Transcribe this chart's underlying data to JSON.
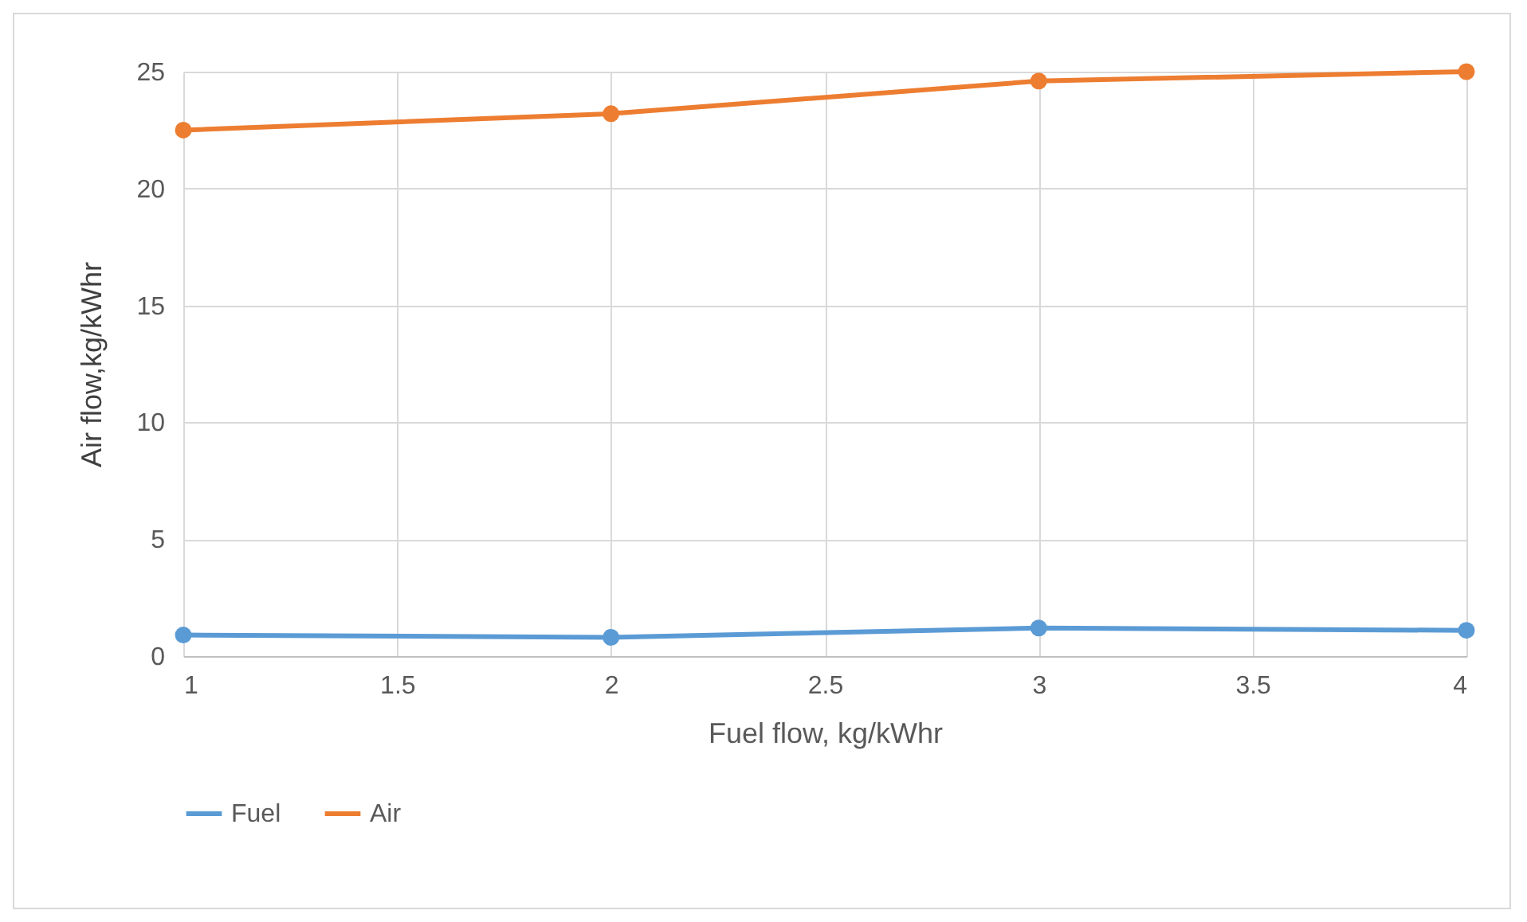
{
  "chart_data": {
    "type": "line",
    "xlabel": "Fuel flow, kg/kWhr",
    "ylabel": "Air flow,kg/kWhr",
    "x": [
      1,
      2,
      3,
      4
    ],
    "series": [
      {
        "name": "Fuel",
        "color": "#5b9bd5",
        "values": [
          0.9,
          0.8,
          1.2,
          1.1
        ]
      },
      {
        "name": "Air",
        "color": "#ed7d31",
        "values": [
          22.5,
          23.2,
          24.6,
          25.0
        ]
      }
    ],
    "xlim": [
      1,
      4
    ],
    "xticks": [
      1,
      1.5,
      2,
      2.5,
      3,
      3.5,
      4
    ],
    "ylim": [
      0,
      25
    ],
    "yticks": [
      0,
      5,
      10,
      15,
      20,
      25
    ],
    "grid": true,
    "legend": "bottom",
    "marker": "circle",
    "line_style": "solid"
  }
}
